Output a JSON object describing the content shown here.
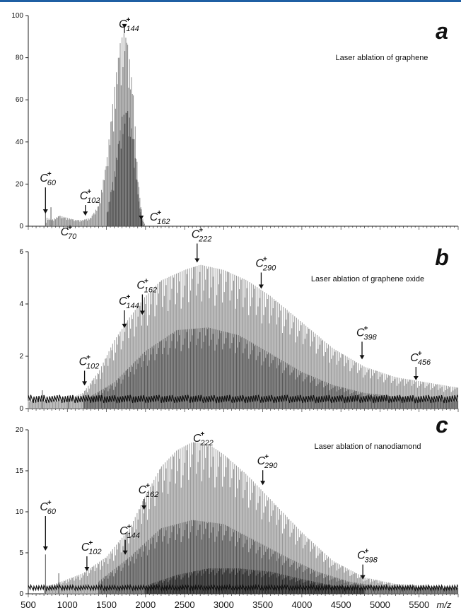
{
  "chart_data": {
    "type": "bar",
    "x_axis": {
      "unit_label": "m/z",
      "range": [
        500,
        6000
      ],
      "ticks": [
        "500",
        "1000",
        "1500",
        "2000",
        "2500",
        "3000",
        "3500",
        "4000",
        "4500",
        "5000",
        "5500"
      ]
    },
    "panels": [
      {
        "letter": "a",
        "title": "Laser ablation of graphene",
        "ylim": [
          0,
          100
        ],
        "y_ticks": [
          "0",
          "20",
          "40",
          "60",
          "80",
          "100"
        ],
        "envelopes": [
          {
            "gray": 0.55,
            "points": [
              [
                720,
                0
              ],
              [
                740,
                4
              ],
              [
                800,
                3
              ],
              [
                900,
                5
              ],
              [
                1000,
                4
              ],
              [
                1100,
                3
              ],
              [
                1200,
                3
              ],
              [
                1300,
                4
              ],
              [
                1400,
                10
              ],
              [
                1500,
                30
              ],
              [
                1600,
                65
              ],
              [
                1680,
                88
              ],
              [
                1730,
                92
              ],
              [
                1780,
                85
              ],
              [
                1850,
                60
              ],
              [
                1900,
                25
              ],
              [
                1950,
                5
              ],
              [
                2000,
                0
              ]
            ]
          },
          {
            "gray": 0.3,
            "points": [
              [
                1500,
                5
              ],
              [
                1600,
                25
              ],
              [
                1700,
                52
              ],
              [
                1780,
                55
              ],
              [
                1850,
                40
              ],
              [
                1920,
                10
              ],
              [
                1980,
                0
              ]
            ]
          }
        ],
        "spikes": [
          [
            720,
            9
          ],
          [
            790,
            9
          ],
          [
            1945,
            8
          ]
        ],
        "annotations": [
          {
            "base": "C",
            "sub": "60",
            "sup": "+",
            "mz": 720,
            "level": 5
          },
          {
            "base": "C",
            "sub": "70",
            "sup": "+",
            "mz": 840,
            "level": -1
          },
          {
            "base": "C",
            "sub": "102",
            "sup": "+",
            "mz": 1230,
            "level": 4
          },
          {
            "base": "C",
            "sub": "144",
            "sup": "+",
            "mz": 1730,
            "level": 93
          },
          {
            "base": "C",
            "sub": "162",
            "sup": "+",
            "mz": 1945,
            "level": 2
          }
        ]
      },
      {
        "letter": "b",
        "title": "Laser ablation of graphene oxide",
        "ylim": [
          0,
          6
        ],
        "y_ticks": [
          "0",
          "2",
          "4",
          "6"
        ],
        "envelopes": [
          {
            "gray": 0.6,
            "points": [
              [
                500,
                0.3
              ],
              [
                1000,
                0.35
              ],
              [
                1200,
                0.6
              ],
              [
                1400,
                1.4
              ],
              [
                1600,
                2.6
              ],
              [
                1800,
                3.5
              ],
              [
                2000,
                4.3
              ],
              [
                2200,
                4.9
              ],
              [
                2500,
                5.3
              ],
              [
                2700,
                5.5
              ],
              [
                3000,
                5.3
              ],
              [
                3300,
                4.9
              ],
              [
                3600,
                4.3
              ],
              [
                4000,
                3.3
              ],
              [
                4400,
                2.3
              ],
              [
                4800,
                1.6
              ],
              [
                5200,
                1.2
              ],
              [
                5600,
                1.0
              ],
              [
                6000,
                0.8
              ]
            ]
          },
          {
            "gray": 0.35,
            "points": [
              [
                1200,
                0.3
              ],
              [
                1600,
                1.0
              ],
              [
                2000,
                2.2
              ],
              [
                2400,
                3.0
              ],
              [
                2800,
                3.1
              ],
              [
                3200,
                2.8
              ],
              [
                3600,
                2.1
              ],
              [
                4000,
                1.4
              ],
              [
                4400,
                0.9
              ],
              [
                4800,
                0.6
              ],
              [
                5400,
                0.4
              ],
              [
                6000,
                0.3
              ]
            ]
          }
        ],
        "baseline": 0.35,
        "spikes": [
          [
            680,
            0.7
          ],
          [
            1010,
            0.5
          ]
        ],
        "annotations": [
          {
            "base": "C",
            "sub": "102",
            "sup": "+",
            "mz": 1220,
            "level": 0.8
          },
          {
            "base": "C",
            "sub": "144",
            "sup": "+",
            "mz": 1730,
            "level": 3.0
          },
          {
            "base": "C",
            "sub": "162",
            "sup": "+",
            "mz": 1960,
            "level": 3.5
          },
          {
            "base": "C",
            "sub": "222",
            "sup": "+",
            "mz": 2660,
            "level": 5.5
          },
          {
            "base": "C",
            "sub": "290",
            "sup": "+",
            "mz": 3480,
            "level": 4.5
          },
          {
            "base": "C",
            "sub": "398",
            "sup": "+",
            "mz": 4770,
            "level": 1.8
          },
          {
            "base": "C",
            "sub": "456",
            "sup": "+",
            "mz": 5460,
            "level": 1.0
          }
        ]
      },
      {
        "letter": "c",
        "title": "Laser ablation of nanodiamond",
        "ylim": [
          0,
          20
        ],
        "y_ticks": [
          "0",
          "5",
          "10",
          "15",
          "20"
        ],
        "envelopes": [
          {
            "gray": 0.6,
            "points": [
              [
                700,
                0.8
              ],
              [
                900,
                1.4
              ],
              [
                1200,
                2.5
              ],
              [
                1500,
                4.5
              ],
              [
                1800,
                8
              ],
              [
                2000,
                12
              ],
              [
                2200,
                15.5
              ],
              [
                2400,
                17.5
              ],
              [
                2600,
                18.5
              ],
              [
                2800,
                18.3
              ],
              [
                3000,
                17
              ],
              [
                3300,
                14.5
              ],
              [
                3600,
                11.5
              ],
              [
                4000,
                7.5
              ],
              [
                4400,
                4
              ],
              [
                4800,
                2
              ],
              [
                5200,
                1.2
              ],
              [
                6000,
                0.8
              ]
            ]
          },
          {
            "gray": 0.35,
            "points": [
              [
                1400,
                1.5
              ],
              [
                1800,
                4.5
              ],
              [
                2200,
                8
              ],
              [
                2600,
                9
              ],
              [
                3000,
                8.5
              ],
              [
                3400,
                6.5
              ],
              [
                3800,
                4.5
              ],
              [
                4200,
                2.7
              ],
              [
                4600,
                1.5
              ],
              [
                5000,
                0.9
              ],
              [
                6000,
                0.7
              ]
            ]
          },
          {
            "gray": 0.15,
            "points": [
              [
                2000,
                1
              ],
              [
                2400,
                2.3
              ],
              [
                2800,
                3.1
              ],
              [
                3200,
                3.1
              ],
              [
                3600,
                2.7
              ],
              [
                4000,
                1.8
              ],
              [
                4400,
                1.0
              ],
              [
                4800,
                0.7
              ]
            ]
          }
        ],
        "baseline": 0.7,
        "spikes": [
          [
            720,
            4.8
          ],
          [
            890,
            2.5
          ]
        ],
        "annotations": [
          {
            "base": "C",
            "sub": "60",
            "sup": "+",
            "mz": 720,
            "level": 5
          },
          {
            "base": "C",
            "sub": "102",
            "sup": "+",
            "mz": 1250,
            "level": 2.5
          },
          {
            "base": "C",
            "sub": "144",
            "sup": "+",
            "mz": 1740,
            "level": 4.5
          },
          {
            "base": "C",
            "sub": "162",
            "sup": "+",
            "mz": 1980,
            "level": 10
          },
          {
            "base": "C",
            "sub": "222",
            "sup": "+",
            "mz": 2680,
            "level": 18.7
          },
          {
            "base": "C",
            "sub": "290",
            "sup": "+",
            "mz": 3500,
            "level": 13
          },
          {
            "base": "C",
            "sub": "398",
            "sup": "+",
            "mz": 4780,
            "level": 1.5
          }
        ]
      }
    ]
  }
}
